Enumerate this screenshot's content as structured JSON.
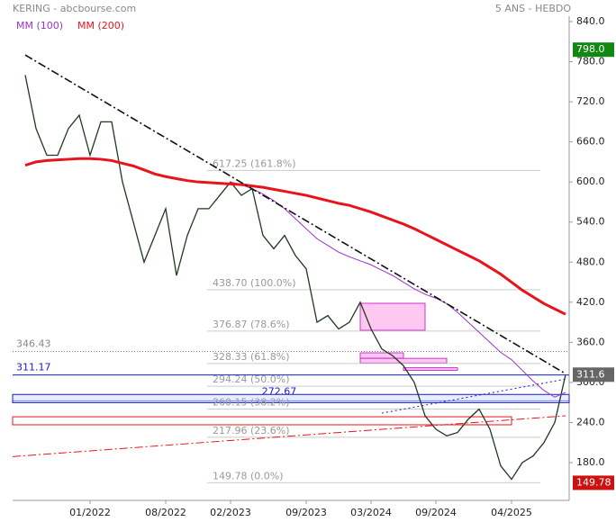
{
  "chart_data": {
    "type": "line",
    "title": "KERING - abcbourse.com",
    "subtitle": "5 ANS - HEBDO",
    "x": [
      "07/2021",
      "08/2021",
      "09/2021",
      "10/2021",
      "11/2021",
      "12/2021",
      "01/2022",
      "02/2022",
      "03/2022",
      "04/2022",
      "05/2022",
      "06/2022",
      "07/2022",
      "08/2022",
      "09/2022",
      "10/2022",
      "11/2022",
      "12/2022",
      "01/2023",
      "02/2023",
      "03/2023",
      "04/2023",
      "05/2023",
      "06/2023",
      "07/2023",
      "08/2023",
      "09/2023",
      "10/2023",
      "11/2023",
      "12/2023",
      "01/2024",
      "02/2024",
      "03/2024",
      "04/2024",
      "05/2024",
      "06/2024",
      "07/2024",
      "08/2024",
      "09/2024",
      "10/2024",
      "11/2024",
      "12/2024",
      "01/2025",
      "02/2025",
      "03/2025",
      "04/2025",
      "05/2025",
      "06/2025",
      "07/2025",
      "08/2025",
      "09/2025"
    ],
    "xticks": [
      "01/2022",
      "08/2022",
      "02/2023",
      "09/2023",
      "03/2024",
      "09/2024",
      "04/2025"
    ],
    "series": [
      {
        "name": "KERING",
        "color": "#1f3a1f",
        "values": [
          760,
          680,
          640,
          640,
          680,
          700,
          640,
          690,
          690,
          600,
          540,
          480,
          520,
          560,
          460,
          520,
          560,
          560,
          580,
          600,
          580,
          590,
          520,
          500,
          520,
          490,
          470,
          390,
          400,
          380,
          390,
          420,
          380,
          350,
          340,
          325,
          300,
          250,
          230,
          220,
          225,
          245,
          260,
          230,
          175,
          155,
          180,
          190,
          210,
          240,
          311.6
        ]
      },
      {
        "name": "MM (100)",
        "color": "#9933cc",
        "values": [
          null,
          null,
          null,
          null,
          null,
          null,
          null,
          null,
          null,
          null,
          null,
          null,
          null,
          null,
          null,
          null,
          null,
          null,
          null,
          600,
          596,
          590,
          582,
          572,
          560,
          545,
          530,
          515,
          505,
          495,
          488,
          482,
          476,
          468,
          460,
          450,
          440,
          432,
          426,
          418,
          405,
          390,
          375,
          360,
          345,
          334,
          318,
          302,
          288,
          278,
          285
        ]
      },
      {
        "name": "MM (200)",
        "color": "#e8141b",
        "values": [
          625,
          630,
          632,
          633,
          634,
          635,
          635,
          634,
          632,
          628,
          624,
          618,
          612,
          608,
          605,
          602,
          600,
          599,
          598,
          597,
          596,
          594,
          592,
          589,
          586,
          583,
          580,
          576,
          572,
          568,
          565,
          560,
          555,
          549,
          543,
          537,
          530,
          522,
          514,
          506,
          498,
          490,
          482,
          472,
          462,
          450,
          438,
          428,
          418,
          410,
          402
        ]
      }
    ],
    "ylim": [
      180,
      840
    ],
    "yticks": [
      {
        "value": 840,
        "label": "840.0"
      },
      {
        "value": 780,
        "label": "780.0"
      },
      {
        "value": 720,
        "label": "720.0"
      },
      {
        "value": 660,
        "label": "660.0"
      },
      {
        "value": 600,
        "label": "600.0"
      },
      {
        "value": 540,
        "label": "540.0"
      },
      {
        "value": 480,
        "label": "480.0"
      },
      {
        "value": 420,
        "label": "420.0"
      },
      {
        "value": 360,
        "label": "360.0"
      },
      {
        "value": 300,
        "label": "300.0"
      },
      {
        "value": 240,
        "label": "240.0"
      },
      {
        "value": 180,
        "label": "180.0"
      }
    ],
    "fibonacci": [
      {
        "value": 617.25,
        "label": "617.25 (161.8%)"
      },
      {
        "value": 438.7,
        "label": "438.70 (100.0%)"
      },
      {
        "value": 376.87,
        "label": "376.87 (78.6%)"
      },
      {
        "value": 328.33,
        "label": "328.33 (61.8%)"
      },
      {
        "value": 294.24,
        "label": "294.24 (50.0%)"
      },
      {
        "value": 260.15,
        "label": "260.15 (38.2%)"
      },
      {
        "value": 217.96,
        "label": "217.96 (23.6%)"
      },
      {
        "value": 149.78,
        "label": "149.78 (0.0%)"
      }
    ],
    "levels": [
      {
        "value": 346.43,
        "label": "346.43",
        "color": "#888888"
      },
      {
        "value": 311.17,
        "label": "311.17",
        "color": "#1a1acc"
      }
    ],
    "bands": [
      {
        "value": 272.67,
        "label": "272.67",
        "low": 269.7,
        "high": 282,
        "color": "#1a1acc",
        "fill": "#e6eeff"
      }
    ],
    "zones": [
      {
        "from": "07/2021",
        "to": "04/2025",
        "low": 236.6,
        "high": 248.6,
        "color": "#e8141b",
        "fill": "#ffffff"
      },
      {
        "from": "02/2024",
        "to": "08/2024",
        "low": 378,
        "high": 418.4,
        "color": "#cc33cc",
        "fill": "#ffc8f0"
      },
      {
        "from": "02/2024",
        "to": "06/2024",
        "low": 336.2,
        "high": 344.3,
        "color": "#cc33cc",
        "fill": "#ffc8f0"
      },
      {
        "from": "02/2024",
        "to": "10/2024",
        "low": 329,
        "high": 336,
        "color": "#cc33cc",
        "fill": "#ffc8f0"
      },
      {
        "from": "06/2024",
        "to": "11/2024",
        "low": 318,
        "high": 322,
        "color": "#cc33cc",
        "fill": "#ffc8f0"
      }
    ],
    "trendlines": [
      {
        "from": "07/2021",
        "to": "09/2025",
        "start": 790,
        "end": 313,
        "color": "#111111",
        "dash": "9 3 2 3"
      },
      {
        "from": "07/2021",
        "to": "09/2025",
        "start": 189,
        "end": 250,
        "color": "#e8141b",
        "dash": "9 3 2 3"
      },
      {
        "from": "04/2024",
        "to": "09/2025",
        "start": 254,
        "end": 305,
        "color": "#1a1acc",
        "dash": "2 3"
      }
    ],
    "flags": [
      {
        "value": 798.0,
        "label": "798.0",
        "color": "#118811"
      },
      {
        "value": 311.6,
        "label": "311.6",
        "color": "#666666"
      },
      {
        "value": 149.78,
        "label": "149.78",
        "color": "#cc1111"
      }
    ]
  }
}
